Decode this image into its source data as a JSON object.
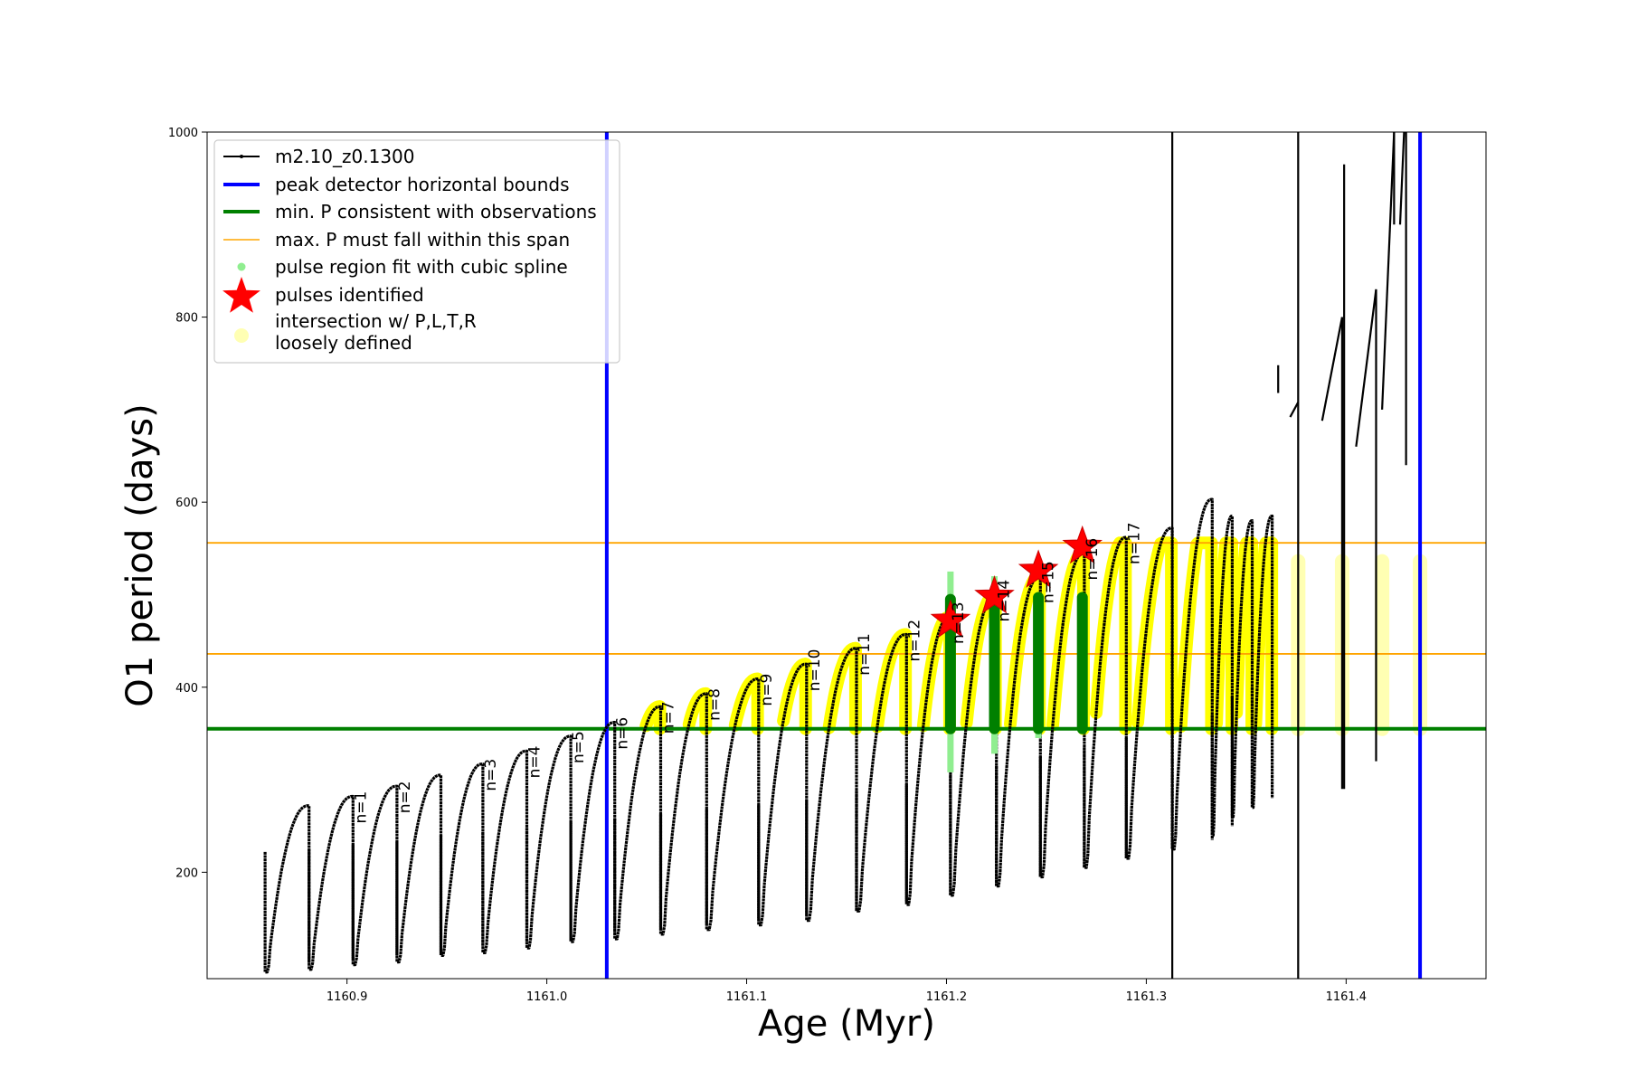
{
  "chart_data": {
    "type": "line",
    "title": "",
    "xlabel": "Age (Myr)",
    "ylabel": "O1 period (days)",
    "xlim": [
      1160.83,
      1161.47
    ],
    "ylim": [
      85,
      1000
    ],
    "xticks": [
      {
        "value": 1160.9,
        "label": "1160.9"
      },
      {
        "value": 1161.0,
        "label": "1161.0"
      },
      {
        "value": 1161.1,
        "label": "1161.1"
      },
      {
        "value": 1161.2,
        "label": "1161.2"
      },
      {
        "value": 1161.3,
        "label": "1161.3"
      },
      {
        "value": 1161.4,
        "label": "1161.4"
      }
    ],
    "yticks": [
      {
        "value": 200,
        "label": "200"
      },
      {
        "value": 400,
        "label": "400"
      },
      {
        "value": 600,
        "label": "600"
      },
      {
        "value": 800,
        "label": "800"
      },
      {
        "value": 1000,
        "label": "1000"
      }
    ],
    "grid": false,
    "legend_position": "top-left",
    "colors": {
      "track": "#000000",
      "bounds": "#0000ff",
      "min_p": "#008000",
      "max_p": "#ffa500",
      "spline": "#90ee90",
      "pulse": "#ff0000",
      "intersection": "#ffff00",
      "loose": "#ffffb3"
    },
    "legend": [
      {
        "key": "track",
        "label": "m2.10_z0.1300"
      },
      {
        "key": "bounds",
        "label": "peak detector horizontal bounds"
      },
      {
        "key": "min_p",
        "label": "min. P consistent with observations"
      },
      {
        "key": "max_p",
        "label": "max. P must fall within this span"
      },
      {
        "key": "spline",
        "label": "pulse region fit with cubic spline"
      },
      {
        "key": "pulse",
        "label": "pulses identified"
      },
      {
        "key": "loose",
        "label": "intersection w/ P,L,T,R",
        "label2": "loosely defined"
      }
    ],
    "horizontal_lines": {
      "min_period": 355,
      "max_period_low": 436,
      "max_period_high": 556
    },
    "vertical_bounds": [
      1161.03,
      1161.437
    ],
    "cycles": [
      {
        "start": 1160.859,
        "end": 1160.881,
        "min": 92,
        "max": 272
      },
      {
        "start": 1160.881,
        "end": 1160.903,
        "min": 95,
        "max": 282,
        "label": "n=1"
      },
      {
        "start": 1160.903,
        "end": 1160.925,
        "min": 100,
        "max": 293,
        "label": "n=2"
      },
      {
        "start": 1160.925,
        "end": 1160.947,
        "min": 103,
        "max": 305
      },
      {
        "start": 1160.947,
        "end": 1160.968,
        "min": 110,
        "max": 317,
        "label": "n=3"
      },
      {
        "start": 1160.968,
        "end": 1160.99,
        "min": 113,
        "max": 331,
        "label": "n=4"
      },
      {
        "start": 1160.99,
        "end": 1161.012,
        "min": 118,
        "max": 347,
        "label": "n=5"
      },
      {
        "start": 1161.012,
        "end": 1161.034,
        "min": 125,
        "max": 362,
        "label": "n=6"
      },
      {
        "start": 1161.034,
        "end": 1161.057,
        "min": 128,
        "max": 379,
        "label": "n=7"
      },
      {
        "start": 1161.057,
        "end": 1161.08,
        "min": 133,
        "max": 393,
        "label": "n=8"
      },
      {
        "start": 1161.08,
        "end": 1161.106,
        "min": 138,
        "max": 409,
        "label": "n=9"
      },
      {
        "start": 1161.106,
        "end": 1161.13,
        "min": 143,
        "max": 425,
        "label": "n=10"
      },
      {
        "start": 1161.13,
        "end": 1161.155,
        "min": 148,
        "max": 442,
        "label": "n=11"
      },
      {
        "start": 1161.155,
        "end": 1161.18,
        "min": 158,
        "max": 457,
        "label": "n=12"
      },
      {
        "start": 1161.18,
        "end": 1161.202,
        "min": 165,
        "max": 476,
        "label": "n=13"
      },
      {
        "start": 1161.202,
        "end": 1161.225,
        "min": 175,
        "max": 500,
        "label": "n=14"
      },
      {
        "start": 1161.225,
        "end": 1161.247,
        "min": 185,
        "max": 520,
        "label": "n=15"
      },
      {
        "start": 1161.247,
        "end": 1161.269,
        "min": 195,
        "max": 545,
        "label": "n=16"
      },
      {
        "start": 1161.269,
        "end": 1161.29,
        "min": 205,
        "max": 562,
        "label": "n=17"
      },
      {
        "start": 1161.29,
        "end": 1161.313,
        "min": 215,
        "max": 572
      },
      {
        "start": 1161.313,
        "end": 1161.333,
        "min": 225,
        "max": 603
      },
      {
        "start": 1161.333,
        "end": 1161.343,
        "min": 240,
        "max": 585
      },
      {
        "start": 1161.343,
        "end": 1161.353,
        "min": 260,
        "max": 580
      },
      {
        "start": 1161.353,
        "end": 1161.363,
        "min": 270,
        "max": 585
      }
    ],
    "pulses": [
      {
        "x": 1161.202,
        "y": 472
      },
      {
        "x": 1161.224,
        "y": 498
      },
      {
        "x": 1161.246,
        "y": 526
      },
      {
        "x": 1161.268,
        "y": 552
      }
    ],
    "pulse_bars": [
      {
        "x": 1161.202,
        "ymin": 355,
        "ymax": 495,
        "spline_min": 308,
        "spline_max": 525
      },
      {
        "x": 1161.224,
        "ymin": 355,
        "ymax": 498,
        "spline_min": 328,
        "spline_max": 520
      },
      {
        "x": 1161.246,
        "ymin": 355,
        "ymax": 497,
        "spline_min": 345,
        "spline_max": 500
      },
      {
        "x": 1161.268,
        "ymin": 355,
        "ymax": 497,
        "spline_min": 350,
        "spline_max": 500
      }
    ],
    "late_segments": [
      {
        "x0": 1161.313,
        "y0": 0,
        "x1": 1161.313,
        "y1": 1000
      },
      {
        "x0": 1161.376,
        "y0": 0,
        "x1": 1161.376,
        "y1": 1000
      },
      {
        "x0": 1161.372,
        "y0": 692,
        "x1": 1161.376,
        "y1": 708
      },
      {
        "x0": 1161.366,
        "y0": 718,
        "x1": 1161.366,
        "y1": 748
      },
      {
        "x0": 1161.388,
        "y0": 688,
        "x1": 1161.398,
        "y1": 800
      },
      {
        "x0": 1161.398,
        "y0": 800,
        "x1": 1161.398,
        "y1": 290
      },
      {
        "x0": 1161.399,
        "y0": 965,
        "x1": 1161.399,
        "y1": 290
      },
      {
        "x0": 1161.405,
        "y0": 660,
        "x1": 1161.415,
        "y1": 830
      },
      {
        "x0": 1161.415,
        "y0": 830,
        "x1": 1161.415,
        "y1": 320
      },
      {
        "x0": 1161.418,
        "y0": 700,
        "x1": 1161.424,
        "y1": 1000
      },
      {
        "x0": 1161.424,
        "y0": 1000,
        "x1": 1161.424,
        "y1": 900
      },
      {
        "x0": 1161.427,
        "y0": 900,
        "x1": 1161.429,
        "y1": 1000
      },
      {
        "x0": 1161.43,
        "y0": 1000,
        "x1": 1161.43,
        "y1": 640
      }
    ]
  }
}
